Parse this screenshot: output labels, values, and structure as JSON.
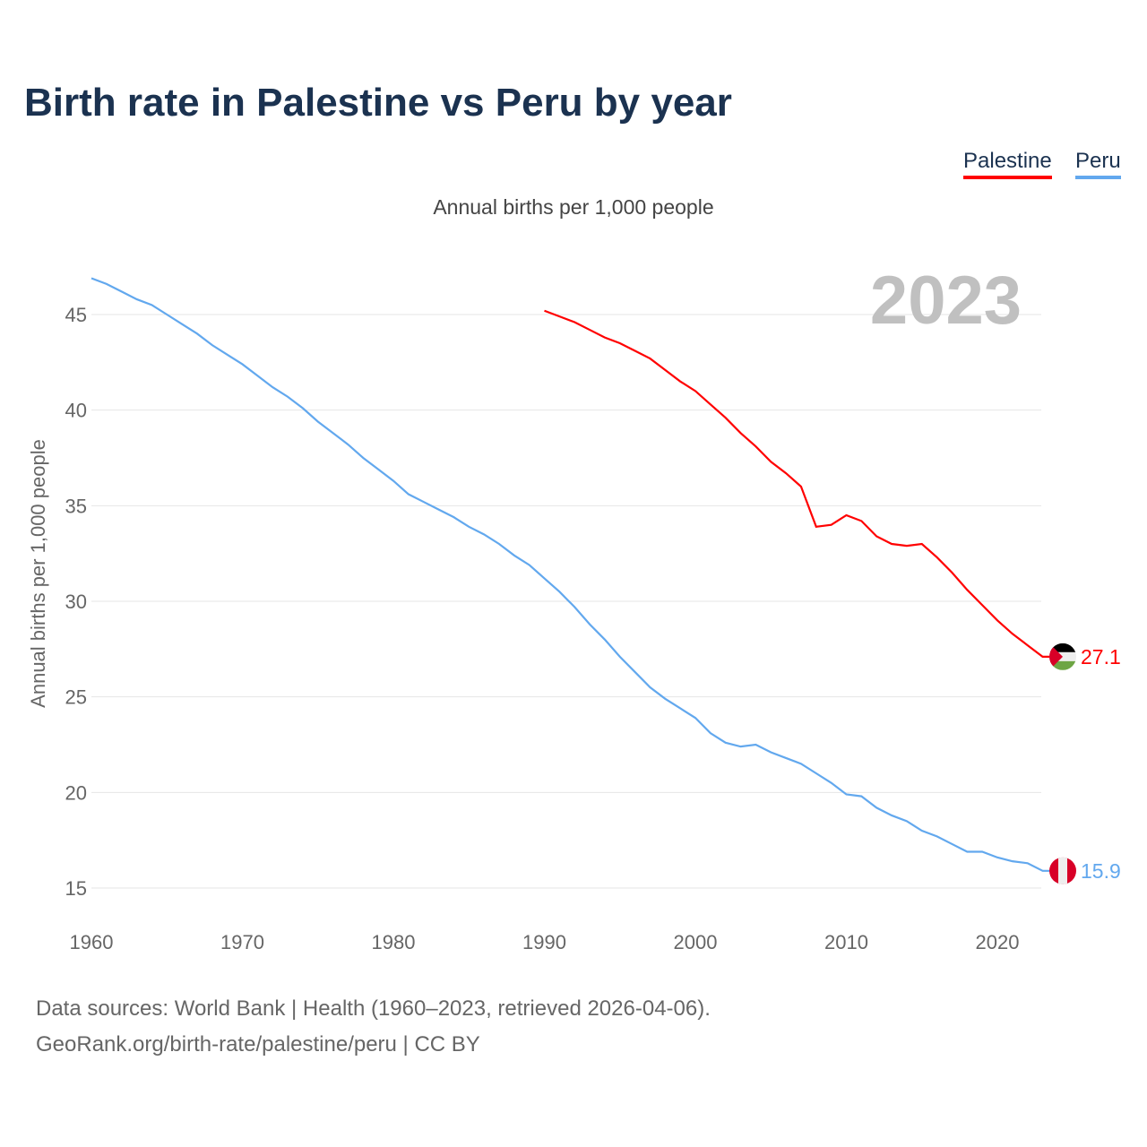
{
  "title": "Birth rate in Palestine vs Peru by year",
  "footer": {
    "line1": "Data sources: World Bank | Health (1960–2023, retrieved 2026-04-06).",
    "line2": "GeoRank.org/birth-rate/palestine/peru | CC BY"
  },
  "chart_data": {
    "type": "line",
    "title": "Birth rate in Palestine vs Peru by year",
    "subtitle": "Annual births per 1,000 people",
    "xlabel": "",
    "ylabel": "Annual births per 1,000 people",
    "year_label": "2023",
    "xlim": [
      1960,
      2023
    ],
    "ylim": [
      15,
      45
    ],
    "xticks": [
      "1960",
      "1970",
      "1980",
      "1990",
      "2000",
      "2010",
      "2020"
    ],
    "yticks": [
      "15",
      "20",
      "25",
      "30",
      "35",
      "40",
      "45"
    ],
    "grid": true,
    "legend_position": "top-right",
    "series": [
      {
        "name": "Palestine",
        "color": "#ff0000",
        "start_year": 1990,
        "end_label": "27.1",
        "flag": "palestine-flag",
        "values": [
          45.2,
          44.9,
          44.6,
          44.2,
          43.8,
          43.5,
          43.1,
          42.7,
          42.1,
          41.5,
          41.0,
          40.3,
          39.6,
          38.8,
          38.1,
          37.3,
          36.7,
          36.0,
          33.9,
          34.0,
          34.5,
          34.2,
          33.4,
          33.0,
          32.9,
          33.0,
          32.3,
          31.5,
          30.6,
          29.8,
          29.0,
          28.3,
          27.7,
          27.1
        ]
      },
      {
        "name": "Peru",
        "color": "#62a8ee",
        "start_year": 1960,
        "end_label": "15.9",
        "flag": "peru-flag",
        "values": [
          46.9,
          46.6,
          46.2,
          45.8,
          45.5,
          45.0,
          44.5,
          44.0,
          43.4,
          42.9,
          42.4,
          41.8,
          41.2,
          40.7,
          40.1,
          39.4,
          38.8,
          38.2,
          37.5,
          36.9,
          36.3,
          35.6,
          35.2,
          34.8,
          34.4,
          33.9,
          33.5,
          33.0,
          32.4,
          31.9,
          31.2,
          30.5,
          29.7,
          28.8,
          28.0,
          27.1,
          26.3,
          25.5,
          24.9,
          24.4,
          23.9,
          23.1,
          22.6,
          22.4,
          22.5,
          22.1,
          21.8,
          21.5,
          21.0,
          20.5,
          19.9,
          19.8,
          19.2,
          18.8,
          18.5,
          18.0,
          17.7,
          17.3,
          16.9,
          16.9,
          16.6,
          16.4,
          16.3,
          15.9
        ]
      }
    ]
  }
}
